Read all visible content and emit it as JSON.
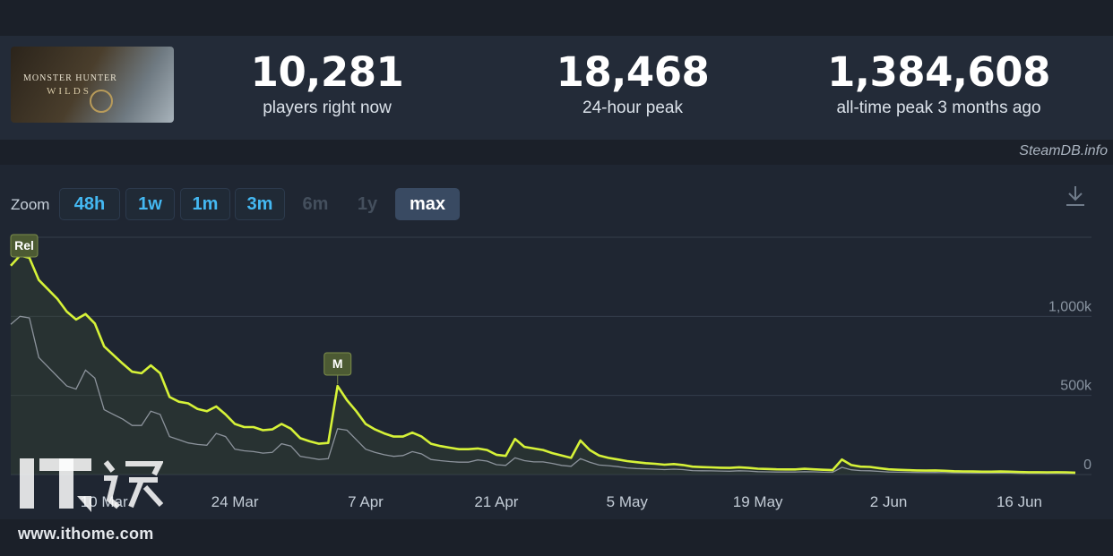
{
  "game": {
    "cover_title": "MONSTER HUNTER",
    "cover_subtitle": "WILDS"
  },
  "stats": [
    {
      "value": "10,281",
      "label": "players right now"
    },
    {
      "value": "18,468",
      "label": "24-hour peak"
    },
    {
      "value": "1,384,608",
      "label": "all-time peak 3 months ago"
    }
  ],
  "credit": "SteamDB.info",
  "zoom": {
    "label": "Zoom",
    "buttons": [
      {
        "label": "48h",
        "state": "enabled"
      },
      {
        "label": "1w",
        "state": "enabled"
      },
      {
        "label": "1m",
        "state": "enabled"
      },
      {
        "label": "3m",
        "state": "enabled"
      },
      {
        "label": "6m",
        "state": "disabled"
      },
      {
        "label": "1y",
        "state": "disabled"
      },
      {
        "label": "max",
        "state": "active"
      }
    ]
  },
  "download_icon": "download-icon",
  "watermark": {
    "logo": "IT之家",
    "url": "www.ithome.com"
  },
  "colors": {
    "main_line": "#d6f238",
    "secondary_line": "#8c939c",
    "background": "#1f2632",
    "grid": "#343d4b"
  },
  "chart_data": {
    "type": "line",
    "grid": true,
    "x_range": [
      "2025-02-28",
      "2025-06-22"
    ],
    "ylim": [
      0,
      1500000
    ],
    "y_ticks": [
      {
        "value": 0,
        "label": "0"
      },
      {
        "value": 500000,
        "label": "500k"
      },
      {
        "value": 1000000,
        "label": "1,000k"
      }
    ],
    "x_ticks": [
      {
        "date": "2025-03-10",
        "label": "10 Mar"
      },
      {
        "date": "2025-03-24",
        "label": "24 Mar"
      },
      {
        "date": "2025-04-07",
        "label": "7 Apr"
      },
      {
        "date": "2025-04-21",
        "label": "21 Apr"
      },
      {
        "date": "2025-05-05",
        "label": "5 May"
      },
      {
        "date": "2025-05-19",
        "label": "19 May"
      },
      {
        "date": "2025-06-02",
        "label": "2 Jun"
      },
      {
        "date": "2025-06-16",
        "label": "16 Jun"
      }
    ],
    "annotations": [
      {
        "text": "Rel",
        "date": "2025-02-28",
        "value": 1384608
      },
      {
        "text": "M",
        "date": "2025-04-04",
        "value": 560000
      }
    ],
    "series": [
      {
        "color": "#d6f238",
        "points": [
          [
            "2025-02-28",
            1320000
          ],
          [
            "2025-03-01",
            1384608
          ],
          [
            "2025-03-02",
            1370000
          ],
          [
            "2025-03-03",
            1230000
          ],
          [
            "2025-03-04",
            1170000
          ],
          [
            "2025-03-05",
            1110000
          ],
          [
            "2025-03-06",
            1030000
          ],
          [
            "2025-03-07",
            980000
          ],
          [
            "2025-03-08",
            1015000
          ],
          [
            "2025-03-09",
            955000
          ],
          [
            "2025-03-10",
            810000
          ],
          [
            "2025-03-11",
            755000
          ],
          [
            "2025-03-12",
            700000
          ],
          [
            "2025-03-13",
            650000
          ],
          [
            "2025-03-14",
            640000
          ],
          [
            "2025-03-15",
            690000
          ],
          [
            "2025-03-16",
            640000
          ],
          [
            "2025-03-17",
            490000
          ],
          [
            "2025-03-18",
            460000
          ],
          [
            "2025-03-19",
            450000
          ],
          [
            "2025-03-20",
            415000
          ],
          [
            "2025-03-21",
            400000
          ],
          [
            "2025-03-22",
            430000
          ],
          [
            "2025-03-23",
            380000
          ],
          [
            "2025-03-24",
            320000
          ],
          [
            "2025-03-25",
            300000
          ],
          [
            "2025-03-26",
            300000
          ],
          [
            "2025-03-27",
            280000
          ],
          [
            "2025-03-28",
            285000
          ],
          [
            "2025-03-29",
            320000
          ],
          [
            "2025-03-30",
            290000
          ],
          [
            "2025-03-31",
            230000
          ],
          [
            "2025-04-01",
            210000
          ],
          [
            "2025-04-02",
            195000
          ],
          [
            "2025-04-03",
            200000
          ],
          [
            "2025-04-04",
            560000
          ],
          [
            "2025-04-05",
            470000
          ],
          [
            "2025-04-06",
            400000
          ],
          [
            "2025-04-07",
            320000
          ],
          [
            "2025-04-08",
            285000
          ],
          [
            "2025-04-09",
            260000
          ],
          [
            "2025-04-10",
            240000
          ],
          [
            "2025-04-11",
            240000
          ],
          [
            "2025-04-12",
            265000
          ],
          [
            "2025-04-13",
            240000
          ],
          [
            "2025-04-14",
            195000
          ],
          [
            "2025-04-15",
            180000
          ],
          [
            "2025-04-16",
            170000
          ],
          [
            "2025-04-17",
            160000
          ],
          [
            "2025-04-18",
            160000
          ],
          [
            "2025-04-19",
            165000
          ],
          [
            "2025-04-20",
            155000
          ],
          [
            "2025-04-21",
            125000
          ],
          [
            "2025-04-22",
            118000
          ],
          [
            "2025-04-23",
            225000
          ],
          [
            "2025-04-24",
            175000
          ],
          [
            "2025-04-25",
            165000
          ],
          [
            "2025-04-26",
            155000
          ],
          [
            "2025-04-27",
            135000
          ],
          [
            "2025-04-28",
            120000
          ],
          [
            "2025-04-29",
            105000
          ],
          [
            "2025-04-30",
            215000
          ],
          [
            "2025-05-01",
            155000
          ],
          [
            "2025-05-02",
            120000
          ],
          [
            "2025-05-03",
            105000
          ],
          [
            "2025-05-04",
            95000
          ],
          [
            "2025-05-05",
            85000
          ],
          [
            "2025-05-06",
            78000
          ],
          [
            "2025-05-07",
            72000
          ],
          [
            "2025-05-08",
            68000
          ],
          [
            "2025-05-09",
            62000
          ],
          [
            "2025-05-10",
            66000
          ],
          [
            "2025-05-11",
            60000
          ],
          [
            "2025-05-12",
            50000
          ],
          [
            "2025-05-13",
            47000
          ],
          [
            "2025-05-14",
            45000
          ],
          [
            "2025-05-15",
            43000
          ],
          [
            "2025-05-16",
            42000
          ],
          [
            "2025-05-17",
            46000
          ],
          [
            "2025-05-18",
            42000
          ],
          [
            "2025-05-19",
            37000
          ],
          [
            "2025-05-20",
            35000
          ],
          [
            "2025-05-21",
            33000
          ],
          [
            "2025-05-22",
            32000
          ],
          [
            "2025-05-23",
            32000
          ],
          [
            "2025-05-24",
            36000
          ],
          [
            "2025-05-25",
            33000
          ],
          [
            "2025-05-26",
            30000
          ],
          [
            "2025-05-27",
            28000
          ],
          [
            "2025-05-28",
            95000
          ],
          [
            "2025-05-29",
            60000
          ],
          [
            "2025-05-30",
            50000
          ],
          [
            "2025-05-31",
            48000
          ],
          [
            "2025-06-01",
            40000
          ],
          [
            "2025-06-02",
            33000
          ],
          [
            "2025-06-03",
            30000
          ],
          [
            "2025-06-04",
            28000
          ],
          [
            "2025-06-05",
            26000
          ],
          [
            "2025-06-06",
            25000
          ],
          [
            "2025-06-07",
            26000
          ],
          [
            "2025-06-08",
            24000
          ],
          [
            "2025-06-09",
            21000
          ],
          [
            "2025-06-10",
            20000
          ],
          [
            "2025-06-11",
            19000
          ],
          [
            "2025-06-12",
            18000
          ],
          [
            "2025-06-13",
            18000
          ],
          [
            "2025-06-14",
            19000
          ],
          [
            "2025-06-15",
            18000
          ],
          [
            "2025-06-16",
            16000
          ],
          [
            "2025-06-17",
            15000
          ],
          [
            "2025-06-18",
            15000
          ],
          [
            "2025-06-19",
            14000
          ],
          [
            "2025-06-20",
            15000
          ],
          [
            "2025-06-21",
            14000
          ],
          [
            "2025-06-22",
            12000
          ]
        ]
      },
      {
        "color": "#8c939c",
        "points": [
          [
            "2025-02-28",
            950000
          ],
          [
            "2025-03-01",
            1000000
          ],
          [
            "2025-03-02",
            990000
          ],
          [
            "2025-03-03",
            740000
          ],
          [
            "2025-03-04",
            680000
          ],
          [
            "2025-03-05",
            620000
          ],
          [
            "2025-03-06",
            560000
          ],
          [
            "2025-03-07",
            540000
          ],
          [
            "2025-03-08",
            660000
          ],
          [
            "2025-03-09",
            610000
          ],
          [
            "2025-03-10",
            410000
          ],
          [
            "2025-03-11",
            380000
          ],
          [
            "2025-03-12",
            350000
          ],
          [
            "2025-03-13",
            310000
          ],
          [
            "2025-03-14",
            310000
          ],
          [
            "2025-03-15",
            400000
          ],
          [
            "2025-03-16",
            380000
          ],
          [
            "2025-03-17",
            240000
          ],
          [
            "2025-03-18",
            220000
          ],
          [
            "2025-03-19",
            200000
          ],
          [
            "2025-03-20",
            190000
          ],
          [
            "2025-03-21",
            185000
          ],
          [
            "2025-03-22",
            260000
          ],
          [
            "2025-03-23",
            240000
          ],
          [
            "2025-03-24",
            160000
          ],
          [
            "2025-03-25",
            150000
          ],
          [
            "2025-03-26",
            145000
          ],
          [
            "2025-03-27",
            135000
          ],
          [
            "2025-03-28",
            140000
          ],
          [
            "2025-03-29",
            195000
          ],
          [
            "2025-03-30",
            180000
          ],
          [
            "2025-03-31",
            115000
          ],
          [
            "2025-04-01",
            105000
          ],
          [
            "2025-04-02",
            95000
          ],
          [
            "2025-04-03",
            100000
          ],
          [
            "2025-04-04",
            290000
          ],
          [
            "2025-04-05",
            280000
          ],
          [
            "2025-04-06",
            220000
          ],
          [
            "2025-04-07",
            160000
          ],
          [
            "2025-04-08",
            140000
          ],
          [
            "2025-04-09",
            125000
          ],
          [
            "2025-04-10",
            115000
          ],
          [
            "2025-04-11",
            120000
          ],
          [
            "2025-04-12",
            145000
          ],
          [
            "2025-04-13",
            130000
          ],
          [
            "2025-04-14",
            95000
          ],
          [
            "2025-04-15",
            88000
          ],
          [
            "2025-04-16",
            82000
          ],
          [
            "2025-04-17",
            78000
          ],
          [
            "2025-04-18",
            78000
          ],
          [
            "2025-04-19",
            92000
          ],
          [
            "2025-04-20",
            85000
          ],
          [
            "2025-04-21",
            62000
          ],
          [
            "2025-04-22",
            58000
          ],
          [
            "2025-04-23",
            105000
          ],
          [
            "2025-04-24",
            88000
          ],
          [
            "2025-04-25",
            80000
          ],
          [
            "2025-04-26",
            80000
          ],
          [
            "2025-04-27",
            70000
          ],
          [
            "2025-04-28",
            58000
          ],
          [
            "2025-04-29",
            52000
          ],
          [
            "2025-04-30",
            100000
          ],
          [
            "2025-05-01",
            78000
          ],
          [
            "2025-05-02",
            60000
          ],
          [
            "2025-05-03",
            56000
          ],
          [
            "2025-05-04",
            50000
          ],
          [
            "2025-05-05",
            42000
          ],
          [
            "2025-05-06",
            38000
          ],
          [
            "2025-05-07",
            36000
          ],
          [
            "2025-05-08",
            34000
          ],
          [
            "2025-05-09",
            31000
          ],
          [
            "2025-05-10",
            34000
          ],
          [
            "2025-05-11",
            31000
          ],
          [
            "2025-05-12",
            25000
          ],
          [
            "2025-05-13",
            24000
          ],
          [
            "2025-05-14",
            23000
          ],
          [
            "2025-05-15",
            22000
          ],
          [
            "2025-05-16",
            21000
          ],
          [
            "2025-05-17",
            24000
          ],
          [
            "2025-05-18",
            22000
          ],
          [
            "2025-05-19",
            18000
          ],
          [
            "2025-05-20",
            17000
          ],
          [
            "2025-05-21",
            16000
          ],
          [
            "2025-05-22",
            16000
          ],
          [
            "2025-05-23",
            16000
          ],
          [
            "2025-05-24",
            18000
          ],
          [
            "2025-05-25",
            17000
          ],
          [
            "2025-05-26",
            15000
          ],
          [
            "2025-05-27",
            14000
          ],
          [
            "2025-05-28",
            45000
          ],
          [
            "2025-05-29",
            30000
          ],
          [
            "2025-05-30",
            25000
          ],
          [
            "2025-05-31",
            24000
          ],
          [
            "2025-06-01",
            20000
          ],
          [
            "2025-06-02",
            16000
          ],
          [
            "2025-06-03",
            15000
          ],
          [
            "2025-06-04",
            14000
          ],
          [
            "2025-06-05",
            13000
          ],
          [
            "2025-06-06",
            12500
          ],
          [
            "2025-06-07",
            13000
          ],
          [
            "2025-06-08",
            12000
          ],
          [
            "2025-06-09",
            10500
          ],
          [
            "2025-06-10",
            10000
          ],
          [
            "2025-06-11",
            9500
          ],
          [
            "2025-06-12",
            9000
          ],
          [
            "2025-06-13",
            9000
          ],
          [
            "2025-06-14",
            9500
          ],
          [
            "2025-06-15",
            9000
          ],
          [
            "2025-06-16",
            8000
          ],
          [
            "2025-06-17",
            7500
          ],
          [
            "2025-06-18",
            7500
          ],
          [
            "2025-06-19",
            7000
          ],
          [
            "2025-06-20",
            7500
          ],
          [
            "2025-06-21",
            7000
          ],
          [
            "2025-06-22",
            6000
          ]
        ]
      }
    ]
  }
}
